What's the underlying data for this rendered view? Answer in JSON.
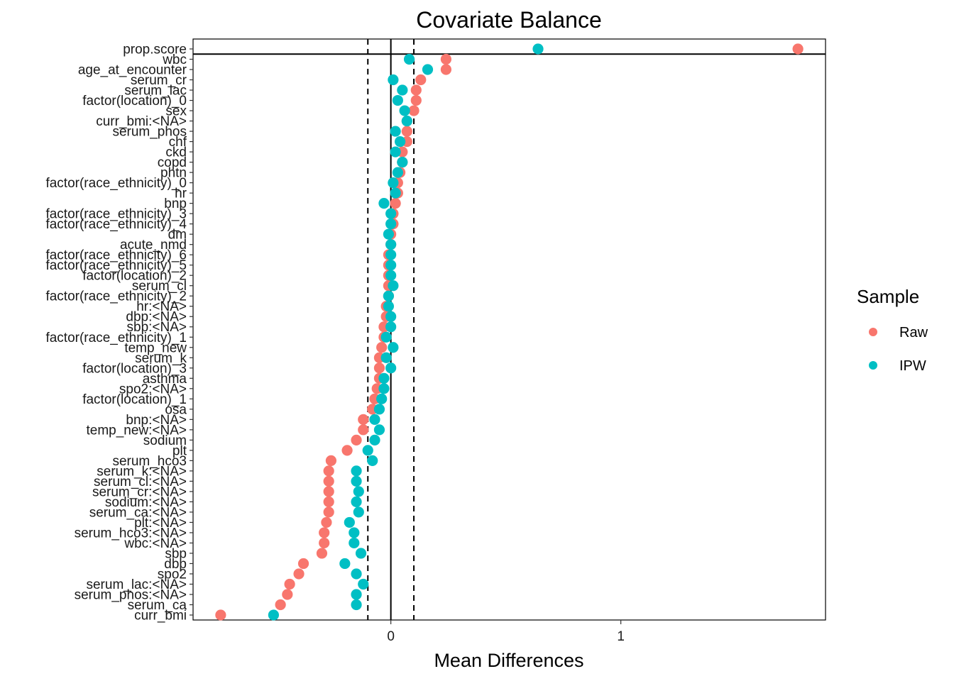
{
  "chart_data": {
    "type": "scatter",
    "title": "Covariate Balance",
    "xlabel": "Mean Differences",
    "ylabel": "",
    "xlim": [
      -0.86,
      1.89
    ],
    "x_ticks": [
      0,
      1
    ],
    "x_tick_labels": [
      "0",
      "1"
    ],
    "threshold_lines": [
      -0.1,
      0.1
    ],
    "zero_line": 0,
    "grid": false,
    "legend": {
      "title": "Sample",
      "placement": "right",
      "entries": [
        {
          "name": "Raw",
          "color": "#F8766D"
        },
        {
          "name": "IPW",
          "color": "#00BFC4"
        }
      ]
    },
    "categories": [
      "prop.score",
      "wbc",
      "age_at_encounter",
      "serum_cr",
      "serum_lac",
      "factor(location)_0",
      "sex",
      "curr_bmi:<NA>",
      "serum_phos",
      "chf",
      "ckd",
      "copd",
      "phtn",
      "factor(race_ethnicity)_0",
      "hr",
      "bnp",
      "factor(race_ethnicity)_3",
      "factor(race_ethnicity)_4",
      "dm",
      "acute_nmd",
      "factor(race_ethnicity)_6",
      "factor(race_ethnicity)_5",
      "factor(location)_2",
      "serum_cl",
      "factor(race_ethnicity)_2",
      "hr:<NA>",
      "dbp:<NA>",
      "sbp:<NA>",
      "factor(race_ethnicity)_1",
      "temp_new",
      "serum_k",
      "factor(location)_3",
      "asthma",
      "spo2:<NA>",
      "factor(location)_1",
      "osa",
      "bnp:<NA>",
      "temp_new:<NA>",
      "sodium",
      "plt",
      "serum_hco3",
      "serum_k:<NA>",
      "serum_cl:<NA>",
      "serum_cr:<NA>",
      "sodium:<NA>",
      "serum_ca:<NA>",
      "plt:<NA>",
      "serum_hco3:<NA>",
      "wbc:<NA>",
      "sbp",
      "dbp",
      "spo2",
      "serum_lac:<NA>",
      "serum_phos:<NA>",
      "serum_ca",
      "curr_bmi"
    ],
    "series": [
      {
        "name": "Raw",
        "color": "#F8766D",
        "values": [
          1.77,
          0.24,
          0.24,
          0.13,
          0.11,
          0.11,
          0.1,
          0.07,
          0.07,
          0.07,
          0.05,
          0.05,
          0.04,
          0.03,
          0.03,
          0.02,
          0.01,
          0.01,
          0.0,
          0.0,
          -0.01,
          -0.01,
          -0.01,
          -0.01,
          -0.01,
          -0.02,
          -0.02,
          -0.03,
          -0.03,
          -0.04,
          -0.05,
          -0.05,
          -0.05,
          -0.06,
          -0.07,
          -0.08,
          -0.12,
          -0.12,
          -0.15,
          -0.19,
          -0.26,
          -0.27,
          -0.27,
          -0.27,
          -0.27,
          -0.27,
          -0.28,
          -0.29,
          -0.29,
          -0.3,
          -0.38,
          -0.4,
          -0.44,
          -0.45,
          -0.48,
          -0.74
        ]
      },
      {
        "name": "IPW",
        "color": "#00BFC4",
        "values": [
          0.64,
          0.08,
          0.16,
          0.01,
          0.05,
          0.03,
          0.06,
          0.07,
          0.02,
          0.04,
          0.02,
          0.05,
          0.03,
          0.01,
          0.02,
          -0.03,
          0.0,
          0.0,
          -0.01,
          0.0,
          0.0,
          0.0,
          0.0,
          0.01,
          -0.01,
          -0.01,
          0.0,
          0.0,
          -0.02,
          0.01,
          -0.02,
          0.0,
          -0.03,
          -0.03,
          -0.04,
          -0.05,
          -0.07,
          -0.05,
          -0.07,
          -0.1,
          -0.08,
          -0.15,
          -0.15,
          -0.14,
          -0.15,
          -0.14,
          -0.18,
          -0.16,
          -0.16,
          -0.13,
          -0.2,
          -0.15,
          -0.12,
          -0.15,
          -0.15,
          -0.51
        ]
      }
    ]
  }
}
